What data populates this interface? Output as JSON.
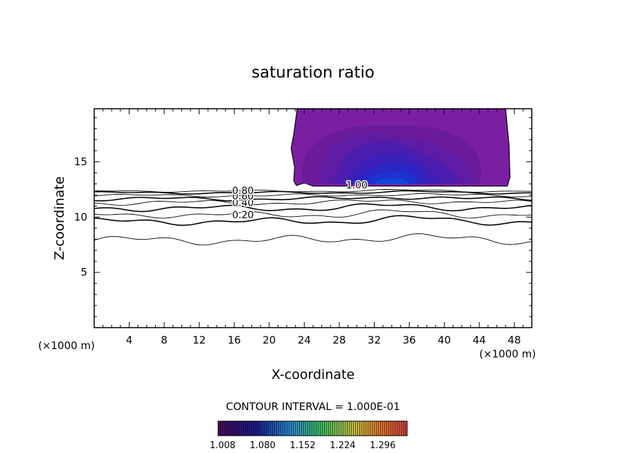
{
  "chart_data": {
    "type": "heatmap",
    "title": "saturation ratio",
    "xlabel": "X-coordinate",
    "ylabel": "Z-coordinate",
    "x_unit": "(×1000 m)",
    "y_unit": "(×1000 m)",
    "xlim": [
      0,
      50
    ],
    "ylim": [
      0,
      19.8
    ],
    "x_ticks": [
      4,
      8,
      12,
      16,
      20,
      24,
      28,
      32,
      36,
      40,
      44,
      48
    ],
    "y_ticks": [
      5,
      10,
      15
    ],
    "contour_interval_text": "CONTOUR INTERVAL = 1.000E-01",
    "contour_labels": [
      {
        "text": "0.20",
        "x": 17.0,
        "y": 10.2
      },
      {
        "text": "0.40",
        "x": 17.0,
        "y": 11.3
      },
      {
        "text": "0.60",
        "x": 17.0,
        "y": 11.9
      },
      {
        "text": "0.80",
        "x": 17.0,
        "y": 12.4
      },
      {
        "text": "1.00",
        "x": 30.0,
        "y": 12.9
      }
    ],
    "contour_lines": [
      {
        "level": 0.1,
        "base": 7.9,
        "amp": 0.45
      },
      {
        "level": 0.2,
        "base": 9.6,
        "amp": 0.35
      },
      {
        "level": 0.3,
        "base": 10.2,
        "amp": 0.3
      },
      {
        "level": 0.4,
        "base": 10.8,
        "amp": 0.3
      },
      {
        "level": 0.5,
        "base": 11.3,
        "amp": 0.25
      },
      {
        "level": 0.6,
        "base": 11.65,
        "amp": 0.2
      },
      {
        "level": 0.7,
        "base": 11.95,
        "amp": 0.15
      },
      {
        "level": 0.8,
        "base": 12.2,
        "amp": 0.12
      },
      {
        "level": 0.9,
        "base": 12.35,
        "amp": 0.1
      }
    ],
    "supersaturated_region": {
      "x_range": [
        22.5,
        47.5
      ],
      "z_range": [
        12.8,
        19.8
      ],
      "max_value_location": [
        34,
        13.3
      ]
    },
    "colorbar_ticks": [
      "1.008",
      "1.080",
      "1.152",
      "1.224",
      "1.296"
    ],
    "colorbar_range": [
      1.0,
      1.34
    ]
  }
}
